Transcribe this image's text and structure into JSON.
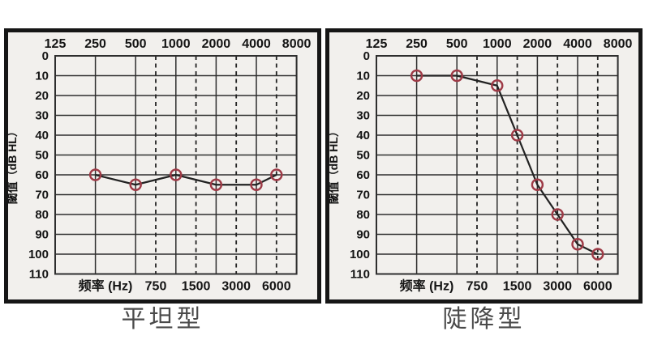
{
  "page": {
    "background": "#ffffff"
  },
  "chart_data": [
    {
      "type": "line",
      "title": "平坦型",
      "ylabel": "閾值（dB HL）",
      "xlabel": "频率 (Hz)",
      "x_scale": "log-octave",
      "top_axis_ticks": [
        125,
        250,
        500,
        1000,
        2000,
        4000,
        8000
      ],
      "bottom_axis_ticks": [
        750,
        1500,
        3000,
        6000
      ],
      "y_ticks": [
        0,
        10,
        20,
        30,
        40,
        50,
        60,
        70,
        80,
        90,
        100,
        110
      ],
      "ylim": [
        0,
        110
      ],
      "xlim": [
        125,
        8000
      ],
      "grid": true,
      "legend": "none",
      "series": [
        {
          "marker": "circle-outline",
          "x": [
            250,
            500,
            1000,
            2000,
            4000,
            6000
          ],
          "y": [
            60,
            65,
            60,
            65,
            65,
            60
          ]
        }
      ],
      "colors": {
        "line": "#222222",
        "marker": "#9e3a46",
        "grid": "#2e2e2e",
        "panel_bg": "#f2f0ed",
        "border": "#161616",
        "text": "#141414"
      }
    },
    {
      "type": "line",
      "title": "陡降型",
      "ylabel": "閾值（dB HL）",
      "xlabel": "频率 (Hz)",
      "x_scale": "log-octave",
      "top_axis_ticks": [
        125,
        250,
        500,
        1000,
        2000,
        4000,
        8000
      ],
      "bottom_axis_ticks": [
        750,
        1500,
        3000,
        6000
      ],
      "y_ticks": [
        0,
        10,
        20,
        30,
        40,
        50,
        60,
        70,
        80,
        90,
        100,
        110
      ],
      "ylim": [
        0,
        110
      ],
      "xlim": [
        125,
        8000
      ],
      "grid": true,
      "legend": "none",
      "series": [
        {
          "marker": "circle-outline",
          "x": [
            250,
            500,
            1000,
            1500,
            2000,
            3000,
            4000,
            6000
          ],
          "y": [
            10,
            10,
            15,
            40,
            65,
            80,
            95,
            100
          ]
        }
      ],
      "colors": {
        "line": "#222222",
        "marker": "#9e3a46",
        "grid": "#2e2e2e",
        "panel_bg": "#f2f0ed",
        "border": "#161616",
        "text": "#141414"
      }
    }
  ]
}
